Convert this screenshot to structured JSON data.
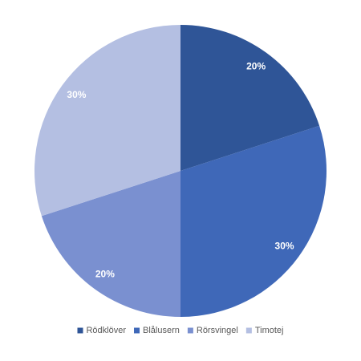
{
  "chart_data": {
    "type": "pie",
    "categories": [
      "Rödklöver",
      "Blålusern",
      "Rörsvingel",
      "Timotej"
    ],
    "values": [
      20,
      30,
      20,
      30
    ],
    "value_labels": [
      "20%",
      "30%",
      "20%",
      "30%"
    ],
    "colors": [
      "#2f5597",
      "#3f68b8",
      "#7a90d0",
      "#b4bfe2"
    ],
    "legend": "bottom"
  }
}
